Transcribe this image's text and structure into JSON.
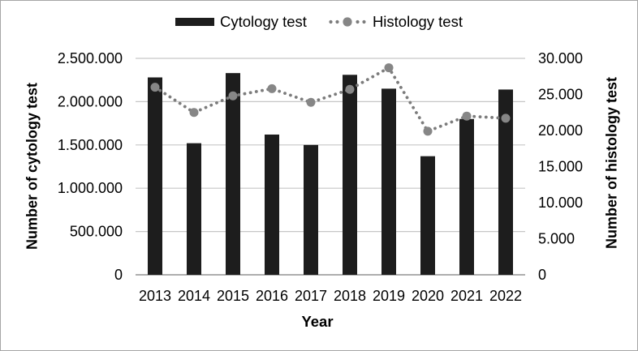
{
  "legend": {
    "items": [
      {
        "label": "Cytology test",
        "marker": "bar-swatch",
        "color": "#1d1d1d"
      },
      {
        "label": "Histology test",
        "marker": "dotted-line",
        "color": "#7c7c7c",
        "marker_color": "#868686"
      }
    ]
  },
  "chart_data": {
    "type": "bar+line",
    "categories": [
      "2013",
      "2014",
      "2015",
      "2016",
      "2017",
      "2018",
      "2019",
      "2020",
      "2021",
      "2022"
    ],
    "series": [
      {
        "name": "Cytology test",
        "type": "bar",
        "axis": "left",
        "color": "#1d1d1d",
        "values": [
          2280000,
          1520000,
          2330000,
          1620000,
          1500000,
          2310000,
          2150000,
          1370000,
          1800000,
          2140000
        ]
      },
      {
        "name": "Histology test",
        "type": "line",
        "style": "dotted",
        "marker": "circle",
        "axis": "right",
        "color": "#7c7c7c",
        "marker_color": "#868686",
        "values": [
          26000,
          22500,
          24800,
          25800,
          23900,
          25700,
          28700,
          19900,
          22000,
          21700
        ]
      }
    ],
    "left_axis": {
      "title": "Number of cytology test",
      "min": 0,
      "max": 2500000,
      "tick_labels": [
        "0",
        "500.000",
        "1.000.000",
        "1.500.000",
        "2.000.000",
        "2.500.000"
      ]
    },
    "right_axis": {
      "title": "Number of histology test",
      "min": 0,
      "max": 30000,
      "tick_labels": [
        "0",
        "5.000",
        "10.000",
        "15.000",
        "20.000",
        "25.000",
        "30.000"
      ]
    },
    "x_axis": {
      "title": "Year"
    },
    "grid": "horizontal",
    "legend_position": "top",
    "colors": {
      "grid": "#c6c6c6",
      "baseline": "#aeaeae",
      "text": "#000000",
      "background": "#ffffff",
      "frame_border": "#a6a6a6"
    }
  }
}
